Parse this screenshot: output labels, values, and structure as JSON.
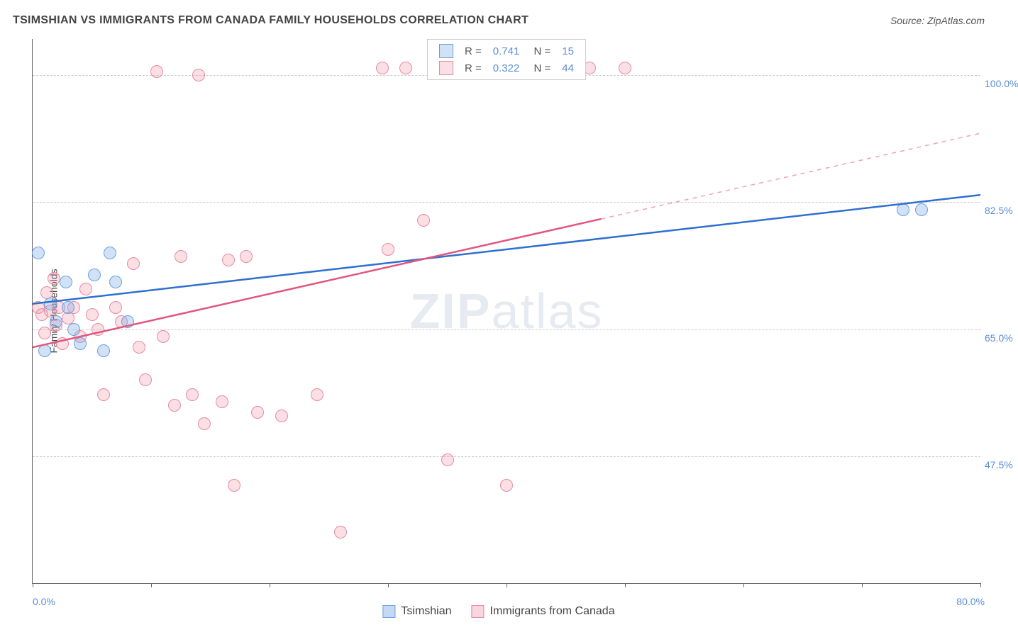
{
  "title": "TSIMSHIAN VS IMMIGRANTS FROM CANADA FAMILY HOUSEHOLDS CORRELATION CHART",
  "source": "Source: ZipAtlas.com",
  "watermark_a": "ZIP",
  "watermark_b": "atlas",
  "chart": {
    "type": "scatter",
    "xlim": [
      0,
      80
    ],
    "ylim": [
      30,
      105
    ],
    "x_ticks": [
      0,
      10,
      20,
      30,
      40,
      50,
      60,
      70,
      80
    ],
    "x_min_label": "0.0%",
    "x_max_label": "80.0%",
    "y_gridlines": [
      47.5,
      65.0,
      82.5,
      100.0
    ],
    "y_tick_labels": [
      "47.5%",
      "65.0%",
      "82.5%",
      "100.0%"
    ],
    "yaxis_title": "Family Households",
    "background": "#ffffff",
    "grid_color": "#cccccc",
    "axis_color": "#666666",
    "tick_font_color": "#5b8dd6",
    "marker_radius": 9,
    "marker_border_width": 1.5,
    "series": [
      {
        "name": "Tsimshian",
        "color_fill": "rgba(122,170,230,0.35)",
        "color_border": "#6aa0e0",
        "line_color": "#2e6fd0",
        "line_width": 2.5,
        "R": "0.741",
        "N": "15",
        "regression": {
          "x1": 0,
          "y1": 68.5,
          "x2": 80,
          "y2": 83.5,
          "solid_until_x": 80
        },
        "points": [
          [
            0.5,
            75.5
          ],
          [
            1.0,
            62.0
          ],
          [
            1.5,
            68.5
          ],
          [
            2.0,
            66.0
          ],
          [
            2.8,
            71.5
          ],
          [
            3.0,
            68.0
          ],
          [
            3.5,
            65.0
          ],
          [
            4.0,
            63.0
          ],
          [
            5.2,
            72.5
          ],
          [
            6.0,
            62.0
          ],
          [
            6.5,
            75.5
          ],
          [
            7.0,
            71.5
          ],
          [
            8.0,
            66.0
          ],
          [
            73.5,
            81.5
          ],
          [
            75.0,
            81.5
          ]
        ]
      },
      {
        "name": "Immigrants from Canada",
        "color_fill": "rgba(240,150,170,0.30)",
        "color_border": "#e88aa2",
        "line_color": "#e2567e",
        "line_width": 2.5,
        "R": "0.322",
        "N": "44",
        "regression": {
          "x1": 0,
          "y1": 62.5,
          "x2": 80,
          "y2": 92.0,
          "solid_until_x": 48
        },
        "points": [
          [
            0.5,
            68.0
          ],
          [
            0.8,
            67.0
          ],
          [
            1.0,
            64.5
          ],
          [
            1.2,
            70.0
          ],
          [
            1.5,
            67.5
          ],
          [
            1.8,
            72.0
          ],
          [
            2.0,
            65.5
          ],
          [
            2.2,
            68.0
          ],
          [
            2.5,
            63.0
          ],
          [
            3.0,
            66.5
          ],
          [
            3.5,
            68.0
          ],
          [
            4.0,
            64.0
          ],
          [
            4.5,
            70.5
          ],
          [
            5.0,
            67.0
          ],
          [
            5.5,
            65.0
          ],
          [
            6.0,
            56.0
          ],
          [
            7.0,
            68.0
          ],
          [
            7.5,
            66.0
          ],
          [
            8.5,
            74.0
          ],
          [
            9.0,
            62.5
          ],
          [
            9.5,
            58.0
          ],
          [
            10.5,
            100.5
          ],
          [
            11.0,
            64.0
          ],
          [
            12.0,
            54.5
          ],
          [
            12.5,
            75.0
          ],
          [
            13.5,
            56.0
          ],
          [
            14.0,
            100.0
          ],
          [
            14.5,
            52.0
          ],
          [
            16.0,
            55.0
          ],
          [
            16.5,
            74.5
          ],
          [
            17.0,
            43.5
          ],
          [
            18.0,
            75.0
          ],
          [
            19.0,
            53.5
          ],
          [
            21.0,
            53.0
          ],
          [
            24.0,
            56.0
          ],
          [
            26.0,
            37.0
          ],
          [
            29.5,
            101.0
          ],
          [
            30.0,
            76.0
          ],
          [
            31.5,
            101.0
          ],
          [
            33.0,
            80.0
          ],
          [
            35.0,
            47.0
          ],
          [
            40.0,
            43.5
          ],
          [
            47.0,
            101.0
          ],
          [
            50.0,
            101.0
          ]
        ]
      }
    ],
    "legend_bottom": [
      {
        "label": "Tsimshian",
        "fill": "rgba(122,170,230,0.45)",
        "border": "#6aa0e0"
      },
      {
        "label": "Immigrants from Canada",
        "fill": "rgba(240,150,170,0.40)",
        "border": "#e88aa2"
      }
    ]
  }
}
